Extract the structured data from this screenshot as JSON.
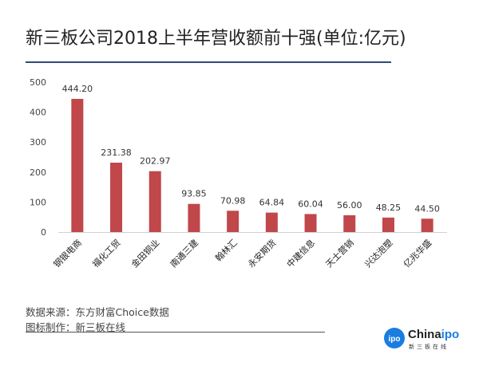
{
  "header": {
    "title": "新三板公司2018上半年营收额前十强(单位:亿元)"
  },
  "chart_data": {
    "type": "bar",
    "title": "新三板公司2018上半年营收额前十强(单位:亿元)",
    "xlabel": "",
    "ylabel": "",
    "ylim": [
      0,
      500
    ],
    "yticks": [
      0,
      100,
      200,
      300,
      400,
      500
    ],
    "grid": false,
    "categories": [
      "钢银电商",
      "福化工贸",
      "金田铜业",
      "南通三建",
      "翰林汇",
      "永安期货",
      "中建信息",
      "天士营销",
      "兴达泡塑",
      "亿兆华盛"
    ],
    "values": [
      444.2,
      231.38,
      202.97,
      93.85,
      70.98,
      64.84,
      60.04,
      56.0,
      48.25,
      44.5
    ],
    "data_labels": [
      "444.20",
      "231.38",
      "202.97",
      "93.85",
      "70.98",
      "64.84",
      "60.04",
      "56.00",
      "48.25",
      "44.50"
    ],
    "bar_color": "#c0474a"
  },
  "footer": {
    "source": "数据来源：东方财富Choice数据",
    "maker": "图标制作：新三板在线",
    "logo": {
      "badge": "ipo",
      "name_prefix": "China",
      "name_suffix": "ipo",
      "subtitle": "新三板在线"
    }
  },
  "colors": {
    "bar": "#c0474a",
    "title_rule": "#2f4a73",
    "logo_blue": "#1a7de0"
  }
}
